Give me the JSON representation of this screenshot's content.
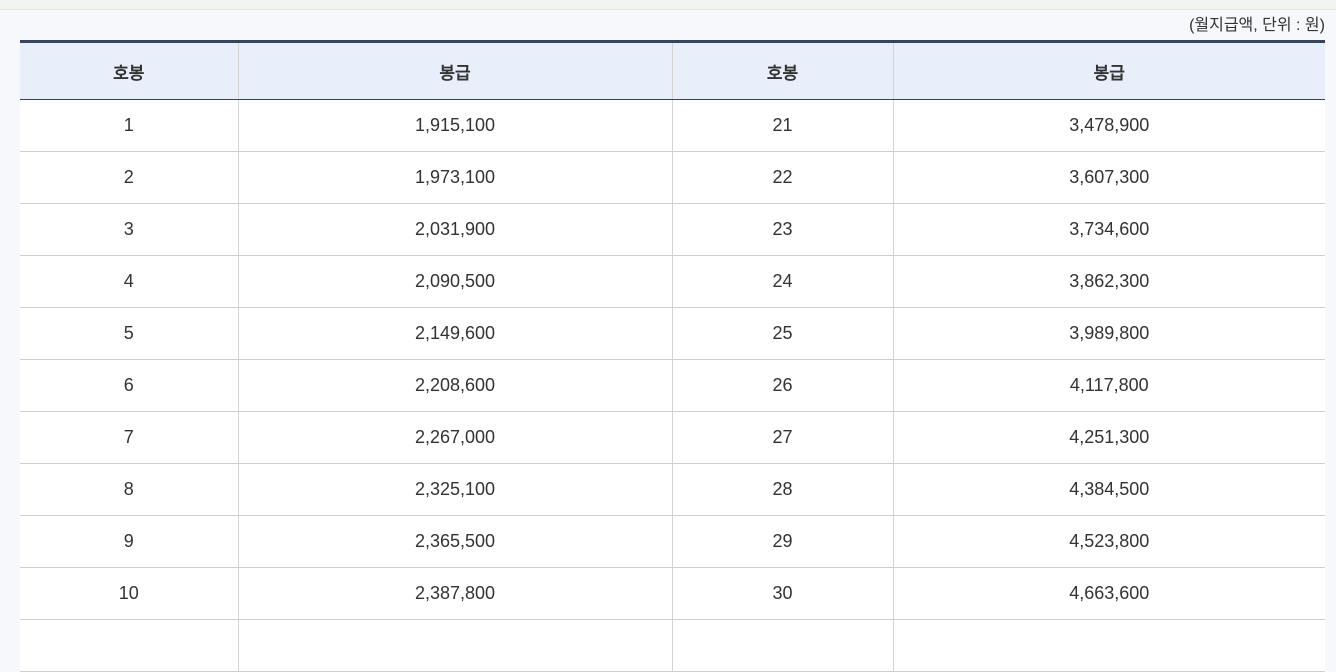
{
  "caption": "(월지급액, 단위 : 원)",
  "table": {
    "headers": [
      "호봉",
      "봉급",
      "호봉",
      "봉급"
    ],
    "rows": [
      [
        "1",
        "1,915,100",
        "21",
        "3,478,900"
      ],
      [
        "2",
        "1,973,100",
        "22",
        "3,607,300"
      ],
      [
        "3",
        "2,031,900",
        "23",
        "3,734,600"
      ],
      [
        "4",
        "2,090,500",
        "24",
        "3,862,300"
      ],
      [
        "5",
        "2,149,600",
        "25",
        "3,989,800"
      ],
      [
        "6",
        "2,208,600",
        "26",
        "4,117,800"
      ],
      [
        "7",
        "2,267,000",
        "27",
        "4,251,300"
      ],
      [
        "8",
        "2,325,100",
        "28",
        "4,384,500"
      ],
      [
        "9",
        "2,365,500",
        "29",
        "4,523,800"
      ],
      [
        "10",
        "2,387,800",
        "30",
        "4,663,600"
      ]
    ]
  },
  "colors": {
    "header_bg": "#e8effb",
    "top_border": "#37455a"
  }
}
